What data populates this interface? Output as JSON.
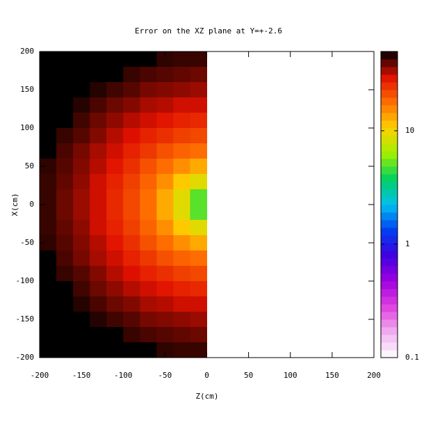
{
  "chart_data": {
    "type": "heatmap",
    "title": "Error on the XZ plane at Y=+-2.6",
    "xlabel": "Z(cm)",
    "ylabel": "X(cm)",
    "x": [
      -190,
      -170,
      -150,
      -130,
      -110,
      -90,
      -70,
      -50,
      -30,
      -10
    ],
    "y": [
      190,
      170,
      150,
      130,
      110,
      90,
      70,
      50,
      30,
      10,
      -10,
      -30,
      -50,
      -70,
      -90,
      -110,
      -130,
      -150,
      -170,
      -190
    ],
    "z": [
      [
        50,
        50,
        50,
        50,
        50,
        50,
        50,
        45,
        44,
        44
      ],
      [
        50,
        50,
        50,
        50,
        50,
        44,
        42,
        41,
        40,
        39
      ],
      [
        50,
        50,
        50,
        46,
        43,
        41,
        38,
        37,
        36,
        35
      ],
      [
        50,
        50,
        46,
        42,
        39,
        37,
        34,
        33,
        31,
        31
      ],
      [
        50,
        50,
        43,
        39,
        36,
        33,
        31,
        29,
        27,
        26
      ],
      [
        50,
        44,
        41,
        37,
        33,
        30,
        27,
        25,
        23,
        22
      ],
      [
        50,
        42,
        38,
        34,
        31,
        27,
        24,
        21,
        19,
        18
      ],
      [
        45,
        41,
        37,
        33,
        29,
        25,
        21,
        18,
        15,
        13
      ],
      [
        44,
        40,
        36,
        31,
        27,
        23,
        19,
        15,
        11,
        9
      ],
      [
        44,
        39,
        35,
        31,
        26,
        22,
        18,
        13,
        9,
        5
      ],
      [
        44,
        39,
        35,
        31,
        26,
        22,
        18,
        13,
        9,
        5
      ],
      [
        44,
        40,
        36,
        31,
        27,
        23,
        19,
        15,
        11,
        9
      ],
      [
        45,
        41,
        37,
        33,
        29,
        25,
        21,
        18,
        15,
        13
      ],
      [
        50,
        42,
        38,
        34,
        31,
        27,
        24,
        21,
        19,
        18
      ],
      [
        50,
        44,
        41,
        37,
        33,
        30,
        27,
        25,
        23,
        22
      ],
      [
        50,
        50,
        43,
        39,
        36,
        33,
        31,
        29,
        27,
        26
      ],
      [
        50,
        50,
        46,
        42,
        39,
        37,
        34,
        33,
        31,
        31
      ],
      [
        50,
        50,
        50,
        46,
        43,
        41,
        38,
        37,
        36,
        35
      ],
      [
        50,
        50,
        50,
        50,
        50,
        44,
        42,
        41,
        40,
        39
      ],
      [
        50,
        50,
        50,
        50,
        50,
        50,
        50,
        45,
        44,
        44
      ]
    ],
    "xlim": [
      -200,
      200
    ],
    "ylim": [
      -200,
      200
    ],
    "xticks": [
      -200,
      -150,
      -100,
      -50,
      0,
      50,
      100,
      150,
      200
    ],
    "yticks": [
      -200,
      -150,
      -100,
      -50,
      0,
      50,
      100,
      150,
      200
    ],
    "zlim": [
      0.1,
      50
    ],
    "zticks": [
      0.1,
      1,
      10
    ],
    "zlog": true,
    "colormap": [
      "#ffffff",
      "#f0b0f0",
      "#e040e0",
      "#a000e0",
      "#4000e0",
      "#0040f0",
      "#00c0f0",
      "#00d060",
      "#a0f000",
      "#ffd000",
      "#ff7000",
      "#e01000",
      "#000000"
    ]
  }
}
